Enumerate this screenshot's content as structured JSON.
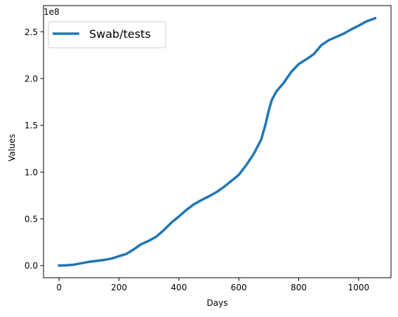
{
  "chart_data": {
    "type": "line",
    "title": "",
    "xlabel": "Days",
    "ylabel": "Values",
    "xlim": [
      -52,
      1108
    ],
    "ylim": [
      -13000000,
      278000000
    ],
    "x_ticks": [
      0,
      200,
      400,
      600,
      800,
      1000
    ],
    "x_tick_labels": [
      "0",
      "200",
      "400",
      "600",
      "800",
      "1000"
    ],
    "y_ticks": [
      0,
      50000000,
      100000000,
      150000000,
      200000000,
      250000000
    ],
    "y_tick_labels": [
      "0.0",
      "0.5",
      "1.0",
      "1.5",
      "2.0",
      "2.5"
    ],
    "y_offset_label": "1e8",
    "grid": false,
    "legend": {
      "position": "top-left",
      "entries": [
        "Swab/tests"
      ]
    },
    "series": [
      {
        "name": "Swab/tests",
        "color": "#1f77b4",
        "x": [
          0,
          25,
          50,
          75,
          100,
          125,
          150,
          175,
          200,
          225,
          250,
          275,
          300,
          325,
          350,
          375,
          400,
          425,
          450,
          475,
          500,
          525,
          550,
          575,
          600,
          625,
          650,
          675,
          690,
          700,
          710,
          725,
          750,
          775,
          800,
          825,
          850,
          875,
          900,
          925,
          950,
          975,
          1000,
          1025,
          1055
        ],
        "y": [
          0,
          300000,
          1000000,
          2500000,
          4000000,
          5000000,
          6000000,
          7500000,
          10000000,
          12500000,
          17500000,
          23000000,
          26500000,
          31000000,
          38000000,
          46000000,
          52500000,
          59500000,
          65500000,
          70000000,
          74000000,
          78500000,
          84000000,
          90500000,
          97000000,
          107500000,
          119500000,
          135000000,
          152000000,
          166000000,
          177000000,
          186000000,
          195500000,
          207000000,
          215500000,
          220500000,
          226000000,
          235500000,
          241000000,
          244500000,
          248000000,
          252500000,
          256500000,
          261000000,
          264500000
        ]
      }
    ]
  }
}
